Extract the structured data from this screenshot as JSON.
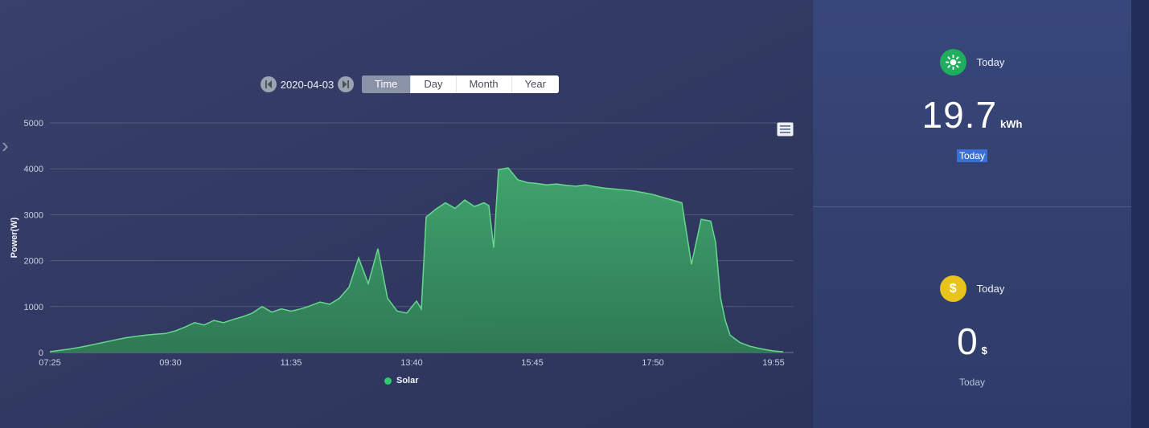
{
  "accent_colors": {
    "chart_fill_top": "#41a86e",
    "chart_fill_bottom": "#2f8154",
    "chart_line": "#66d88d",
    "legend_dot": "#2ecb71",
    "energy_icon_bg": "#1fae5e",
    "money_icon_bg": "#e7c31b",
    "highlight_bg": "#3a6fd8",
    "tab_selected_bg": "#8a93a8"
  },
  "left_edge": {
    "chevron": "›"
  },
  "toolbar": {
    "date_value": "2020-04-03",
    "prev_icon": "skip-previous-icon",
    "next_icon": "skip-next-icon",
    "tabs": [
      {
        "label": "Time",
        "selected": true
      },
      {
        "label": "Day",
        "selected": false
      },
      {
        "label": "Month",
        "selected": false
      },
      {
        "label": "Year",
        "selected": false
      }
    ]
  },
  "chart_data": {
    "type": "area",
    "title": "",
    "xlabel": "",
    "ylabel": "Power(W)",
    "ylim": [
      0,
      5000
    ],
    "y_ticks": [
      0,
      1000,
      2000,
      3000,
      4000,
      5000
    ],
    "x_ticks": [
      "07:25",
      "09:30",
      "11:35",
      "13:40",
      "15:45",
      "17:50",
      "19:55"
    ],
    "grid": true,
    "legend_position": "bottom",
    "legend": [
      {
        "name": "Solar",
        "color": "#2ecb71"
      }
    ],
    "series": [
      {
        "name": "Solar",
        "points": [
          [
            "07:25",
            20
          ],
          [
            "07:35",
            45
          ],
          [
            "07:45",
            75
          ],
          [
            "07:55",
            110
          ],
          [
            "08:05",
            150
          ],
          [
            "08:15",
            195
          ],
          [
            "08:25",
            240
          ],
          [
            "08:35",
            285
          ],
          [
            "08:45",
            325
          ],
          [
            "08:55",
            355
          ],
          [
            "09:05",
            380
          ],
          [
            "09:15",
            400
          ],
          [
            "09:25",
            415
          ],
          [
            "09:35",
            470
          ],
          [
            "09:45",
            555
          ],
          [
            "09:55",
            650
          ],
          [
            "10:05",
            600
          ],
          [
            "10:15",
            700
          ],
          [
            "10:25",
            650
          ],
          [
            "10:35",
            720
          ],
          [
            "10:45",
            780
          ],
          [
            "10:55",
            860
          ],
          [
            "11:05",
            1000
          ],
          [
            "11:15",
            880
          ],
          [
            "11:25",
            950
          ],
          [
            "11:35",
            900
          ],
          [
            "11:45",
            950
          ],
          [
            "11:55",
            1020
          ],
          [
            "12:05",
            1100
          ],
          [
            "12:15",
            1050
          ],
          [
            "12:25",
            1180
          ],
          [
            "12:35",
            1420
          ],
          [
            "12:45",
            2060
          ],
          [
            "12:55",
            1500
          ],
          [
            "13:05",
            2260
          ],
          [
            "13:15",
            1180
          ],
          [
            "13:25",
            900
          ],
          [
            "13:35",
            860
          ],
          [
            "13:45",
            1120
          ],
          [
            "13:50",
            950
          ],
          [
            "13:55",
            2950
          ],
          [
            "14:05",
            3120
          ],
          [
            "14:15",
            3260
          ],
          [
            "14:25",
            3140
          ],
          [
            "14:35",
            3320
          ],
          [
            "14:45",
            3180
          ],
          [
            "14:55",
            3260
          ],
          [
            "15:00",
            3200
          ],
          [
            "15:05",
            2280
          ],
          [
            "15:10",
            3980
          ],
          [
            "15:20",
            4020
          ],
          [
            "15:30",
            3760
          ],
          [
            "15:40",
            3700
          ],
          [
            "15:50",
            3680
          ],
          [
            "16:00",
            3650
          ],
          [
            "16:10",
            3670
          ],
          [
            "16:20",
            3640
          ],
          [
            "16:30",
            3620
          ],
          [
            "16:40",
            3650
          ],
          [
            "16:50",
            3610
          ],
          [
            "17:00",
            3580
          ],
          [
            "17:10",
            3560
          ],
          [
            "17:20",
            3540
          ],
          [
            "17:30",
            3520
          ],
          [
            "17:40",
            3480
          ],
          [
            "17:50",
            3440
          ],
          [
            "18:00",
            3380
          ],
          [
            "18:10",
            3320
          ],
          [
            "18:20",
            3260
          ],
          [
            "18:30",
            1920
          ],
          [
            "18:40",
            2900
          ],
          [
            "18:50",
            2860
          ],
          [
            "18:55",
            2400
          ],
          [
            "19:00",
            1200
          ],
          [
            "19:05",
            700
          ],
          [
            "19:10",
            380
          ],
          [
            "19:20",
            220
          ],
          [
            "19:30",
            140
          ],
          [
            "19:40",
            90
          ],
          [
            "19:50",
            50
          ],
          [
            "19:55",
            35
          ],
          [
            "20:05",
            15
          ]
        ]
      }
    ]
  },
  "panels": {
    "energy": {
      "icon": "sun-icon",
      "badge": "Today",
      "value": "19.7",
      "unit": "kWh",
      "caption": "Today"
    },
    "revenue": {
      "icon": "dollar-icon",
      "icon_glyph": "$",
      "badge": "Today",
      "value": "0",
      "unit": "$",
      "caption": "Today"
    }
  }
}
